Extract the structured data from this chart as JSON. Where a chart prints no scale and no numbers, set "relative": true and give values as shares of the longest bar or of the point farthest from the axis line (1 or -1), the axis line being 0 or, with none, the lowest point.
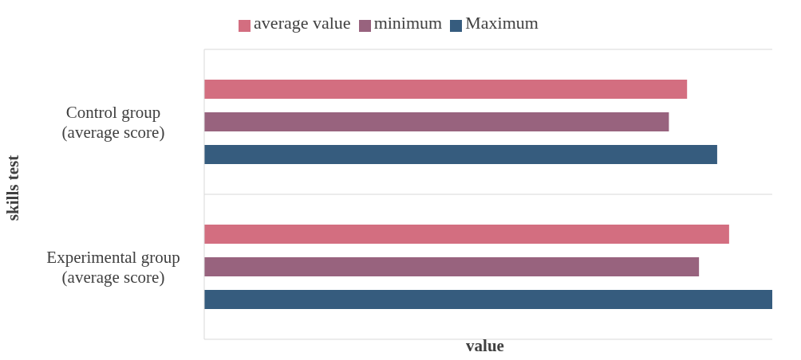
{
  "chart_data": {
    "type": "bar",
    "orientation": "horizontal",
    "relative": true,
    "xlabel": "value",
    "ylabel": "skills test",
    "categories": [
      "Control group (average score)",
      "Experimental group (average score)"
    ],
    "series": [
      {
        "name": "average value",
        "color": "#d36e80",
        "values": [
          0.85,
          0.924
        ]
      },
      {
        "name": "minimum",
        "color": "#98637e",
        "values": [
          0.818,
          0.871
        ]
      },
      {
        "name": "Maximum",
        "color": "#365c7e",
        "values": [
          0.903,
          1
        ]
      }
    ],
    "grid": "y",
    "legend": "top"
  }
}
